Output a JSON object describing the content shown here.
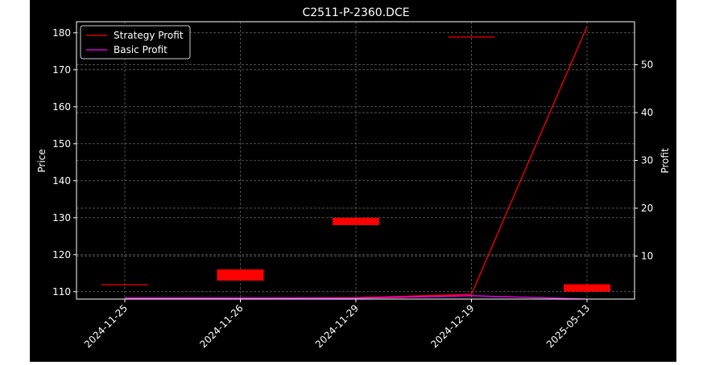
{
  "chart_data": {
    "type": "candlestick",
    "title": "C2511-P-2360.DCE",
    "ylabel": "Price",
    "y2label": "Profit",
    "categories": [
      "2024-11-25",
      "2024-11-26",
      "2024-11-29",
      "2024-12-19",
      "2025-05-13"
    ],
    "ylim": [
      108,
      183
    ],
    "y2lim": [
      1,
      59
    ],
    "yticks": [
      110,
      120,
      130,
      140,
      150,
      160,
      170,
      180
    ],
    "y2ticks": [
      10,
      20,
      30,
      40,
      50
    ],
    "candles": [
      {
        "date": "2024-11-25",
        "open": 112,
        "close": 112
      },
      {
        "date": "2024-11-26",
        "open": 116,
        "close": 113
      },
      {
        "date": "2024-11-29",
        "open": 130,
        "close": 128
      },
      {
        "date": "2024-12-19",
        "open": 179,
        "close": 179
      },
      {
        "date": "2025-05-13",
        "open": 112,
        "close": 110
      }
    ],
    "series": [
      {
        "name": "Strategy Profit",
        "color": "#ff0000",
        "axis": "right",
        "values": [
          1.2,
          1.2,
          1.3,
          2.0,
          58.0
        ]
      },
      {
        "name": "Basic Profit",
        "color": "#ff00ff",
        "axis": "right",
        "values": [
          1.2,
          1.2,
          1.2,
          1.7,
          1.0
        ]
      }
    ],
    "grid": true,
    "legend": "top-left",
    "colors": {
      "background": "#000000",
      "candle": "#ff0000",
      "text": "#ffffff",
      "grid": "#808080"
    }
  }
}
